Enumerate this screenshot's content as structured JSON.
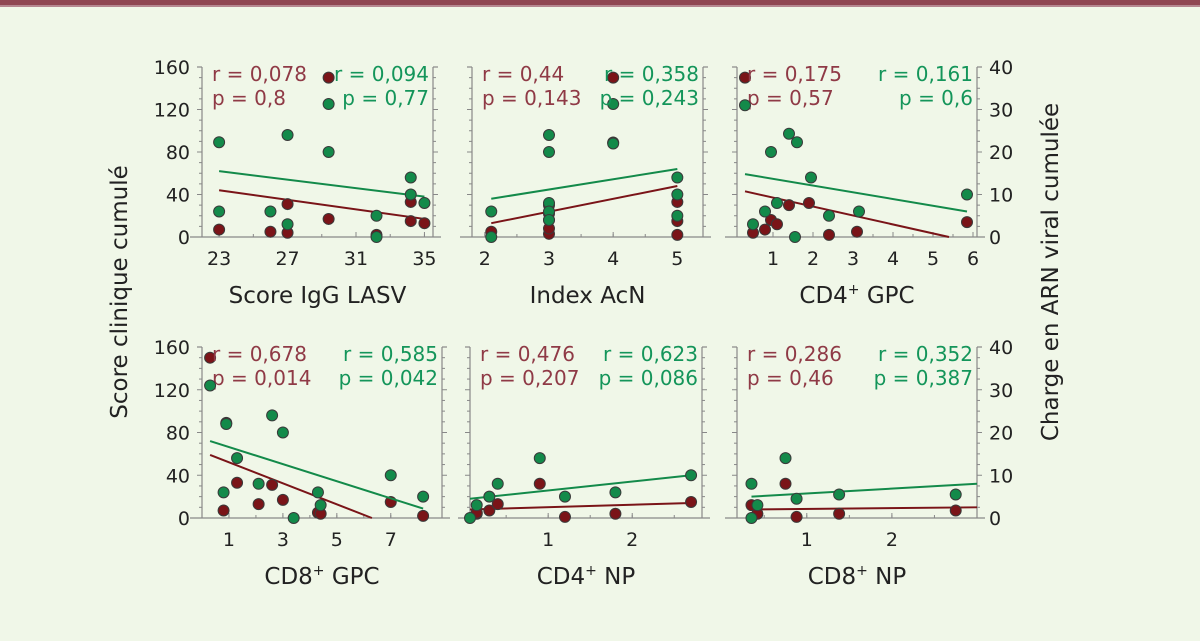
{
  "colors": {
    "background": "#f0f7e8",
    "bar": "#8f4652",
    "red": "#7a1418",
    "green": "#138a4a",
    "red_text": "#8f3a46",
    "green_text": "#14955a",
    "axis": "#888888"
  },
  "chart_data": [
    {
      "type": "scatter",
      "xlabel": "Score IgG LASV",
      "xlim": [
        22,
        35.5
      ],
      "xticks": [
        23,
        27,
        31,
        35
      ],
      "ylabel_left": "Score clinique cumulé",
      "ylim_left": [
        0,
        160
      ],
      "yticks_left": [
        0,
        40,
        80,
        120,
        160
      ],
      "ylabel_right": "Charge en ARN viral cumulée",
      "ylim_right": [
        0,
        40
      ],
      "yticks_right": [
        0,
        10,
        20,
        30,
        40
      ],
      "series": [
        {
          "name": "Score clinique cumulé",
          "color": "red",
          "axis": "left",
          "r": "r = 0,078",
          "p": "p = 0,8",
          "points": [
            [
              23,
              7
            ],
            [
              26,
              5
            ],
            [
              27,
              4
            ],
            [
              27,
              31
            ],
            [
              29.4,
              150
            ],
            [
              29.4,
              17
            ],
            [
              32.2,
              2
            ],
            [
              34.2,
              33
            ],
            [
              34.2,
              15
            ],
            [
              35,
              13
            ]
          ],
          "fit": [
            [
              23,
              44
            ],
            [
              35,
              17
            ]
          ]
        },
        {
          "name": "Charge en ARN viral cumulée",
          "color": "green",
          "axis": "right",
          "r": "r = 0,094",
          "p": "p = 0,77",
          "points": [
            [
              23,
              22.3
            ],
            [
              23,
              6
            ],
            [
              26,
              6
            ],
            [
              27,
              24
            ],
            [
              27,
              3
            ],
            [
              29.4,
              31.3
            ],
            [
              29.4,
              20
            ],
            [
              32.2,
              5
            ],
            [
              32.2,
              0
            ],
            [
              34.2,
              14
            ],
            [
              34.2,
              10
            ],
            [
              35,
              8
            ]
          ],
          "fit": [
            [
              23,
              15.5
            ],
            [
              35,
              9.5
            ]
          ]
        }
      ]
    },
    {
      "type": "scatter",
      "xlabel": "Index AcN",
      "xlim": [
        1.8,
        5.4
      ],
      "xticks": [
        2,
        3,
        4,
        5
      ],
      "ylim_left": [
        0,
        160
      ],
      "ylim_right": [
        0,
        40
      ],
      "series": [
        {
          "name": "Score clinique cumulé",
          "color": "red",
          "axis": "left",
          "r": "r = 0,44",
          "p": "p = 0,143",
          "points": [
            [
              2.1,
              5
            ],
            [
              3,
              3
            ],
            [
              3,
              8
            ],
            [
              3,
              16
            ],
            [
              3,
              22
            ],
            [
              3,
              30
            ],
            [
              4,
              150
            ],
            [
              4,
              89
            ],
            [
              5,
              33
            ],
            [
              5,
              15
            ],
            [
              5,
              2
            ]
          ],
          "fit": [
            [
              2.1,
              13
            ],
            [
              5,
              48
            ]
          ]
        },
        {
          "name": "Charge en ARN viral cumulée",
          "color": "green",
          "axis": "right",
          "r": "r = 0,358",
          "p": "p = 0,243",
          "points": [
            [
              2.1,
              6
            ],
            [
              2.1,
              0
            ],
            [
              3,
              24
            ],
            [
              3,
              20
            ],
            [
              3,
              8
            ],
            [
              3,
              6
            ],
            [
              3,
              4
            ],
            [
              4,
              31.3
            ],
            [
              4,
              22
            ],
            [
              5,
              14
            ],
            [
              5,
              10
            ],
            [
              5,
              5
            ]
          ],
          "fit": [
            [
              2.1,
              9
            ],
            [
              5,
              16
            ]
          ]
        }
      ]
    },
    {
      "type": "scatter",
      "xlabel": "CD4+ GPC",
      "xlim": [
        0.1,
        6.1
      ],
      "xticks": [
        1,
        2,
        3,
        4,
        5,
        6
      ],
      "ylim_left": [
        0,
        160
      ],
      "ylim_right": [
        0,
        40
      ],
      "series": [
        {
          "name": "Score clinique cumulé",
          "color": "red",
          "axis": "left",
          "r": "r = 0,175",
          "p": "p = 0,57",
          "points": [
            [
              0.3,
              150
            ],
            [
              0.5,
              4
            ],
            [
              0.8,
              7
            ],
            [
              0.95,
              16
            ],
            [
              1.1,
              12
            ],
            [
              1.4,
              30
            ],
            [
              1.9,
              32
            ],
            [
              2.4,
              2
            ],
            [
              3.1,
              5
            ],
            [
              5.85,
              14
            ]
          ],
          "fit": [
            [
              0.3,
              43
            ],
            [
              5.4,
              0
            ]
          ]
        },
        {
          "name": "Charge en ARN viral cumulée",
          "color": "green",
          "axis": "right",
          "r": "r = 0,161",
          "p": "p = 0,6",
          "points": [
            [
              0.3,
              31
            ],
            [
              0.5,
              3
            ],
            [
              0.8,
              6
            ],
            [
              0.95,
              20
            ],
            [
              1.1,
              8
            ],
            [
              1.4,
              24.3
            ],
            [
              1.6,
              22.3
            ],
            [
              1.55,
              0
            ],
            [
              1.95,
              14
            ],
            [
              2.4,
              5
            ],
            [
              3.15,
              6
            ],
            [
              5.85,
              10
            ]
          ],
          "fit": [
            [
              0.3,
              14.8
            ],
            [
              5.85,
              6
            ]
          ]
        }
      ]
    },
    {
      "type": "scatter",
      "xlabel": "CD8+ GPC",
      "xlim": [
        0,
        8.9
      ],
      "xticks": [
        1,
        3,
        5,
        7
      ],
      "ylim_left": [
        0,
        160
      ],
      "ylim_right": [
        0,
        40
      ],
      "series": [
        {
          "name": "Score clinique cumulé",
          "color": "red",
          "axis": "left",
          "r": "r = 0,678",
          "p": "p = 0,014",
          "points": [
            [
              0.3,
              150
            ],
            [
              0.8,
              7
            ],
            [
              0.9,
              89
            ],
            [
              1.3,
              33
            ],
            [
              2.1,
              13
            ],
            [
              2.6,
              31
            ],
            [
              3,
              17
            ],
            [
              4.3,
              5
            ],
            [
              4.4,
              4
            ],
            [
              7,
              15
            ],
            [
              8.2,
              2
            ]
          ],
          "fit": [
            [
              0.3,
              59
            ],
            [
              6.3,
              0
            ]
          ]
        },
        {
          "name": "Charge en ARN viral cumulée",
          "color": "green",
          "axis": "right",
          "r": "r = 0,585",
          "p": "p = 0,042",
          "points": [
            [
              0.3,
              31
            ],
            [
              0.8,
              6
            ],
            [
              0.9,
              22
            ],
            [
              1.3,
              14
            ],
            [
              2.1,
              8
            ],
            [
              2.6,
              24
            ],
            [
              3,
              20
            ],
            [
              3.4,
              0
            ],
            [
              4.3,
              6
            ],
            [
              4.4,
              3
            ],
            [
              7,
              10
            ],
            [
              8.2,
              5
            ]
          ],
          "fit": [
            [
              0.3,
              18
            ],
            [
              8.2,
              2.2
            ]
          ]
        }
      ]
    },
    {
      "type": "scatter",
      "xlabel": "CD4+ NP",
      "xlim": [
        0.07,
        2.83
      ],
      "xticks": [
        1,
        2
      ],
      "ylim_left": [
        0,
        160
      ],
      "ylim_right": [
        0,
        40
      ],
      "series": [
        {
          "name": "Score clinique cumulé",
          "color": "red",
          "axis": "left",
          "r": "r = 0,476",
          "p": "p = 0,207",
          "points": [
            [
              0.15,
              4
            ],
            [
              0.15,
              5
            ],
            [
              0.3,
              7
            ],
            [
              0.4,
              13
            ],
            [
              0.9,
              32
            ],
            [
              1.2,
              1
            ],
            [
              1.8,
              4
            ],
            [
              2.7,
              15
            ]
          ],
          "fit": [
            [
              0.07,
              8
            ],
            [
              2.7,
              14
            ]
          ]
        },
        {
          "name": "Charge en ARN viral cumulée",
          "color": "green",
          "axis": "right",
          "r": "r = 0,623",
          "p": "p = 0,086",
          "points": [
            [
              0.07,
              0
            ],
            [
              0.15,
              3
            ],
            [
              0.3,
              5
            ],
            [
              0.4,
              8
            ],
            [
              0.9,
              14
            ],
            [
              1.2,
              5
            ],
            [
              1.8,
              6
            ],
            [
              2.7,
              10
            ]
          ],
          "fit": [
            [
              0.07,
              4.5
            ],
            [
              2.7,
              10
            ]
          ]
        }
      ]
    },
    {
      "type": "scatter",
      "xlabel": "CD8+ NP",
      "xlim": [
        0.18,
        3.0
      ],
      "xticks": [
        1,
        2
      ],
      "ylim_left": [
        0,
        160
      ],
      "ylim_right": [
        0,
        40
      ],
      "series": [
        {
          "name": "Score clinique cumulé",
          "color": "red",
          "axis": "left",
          "r": "r = 0,286",
          "p": "p = 0,46",
          "points": [
            [
              0.35,
              12
            ],
            [
              0.42,
              4
            ],
            [
              0.75,
              32
            ],
            [
              0.88,
              1
            ],
            [
              1.38,
              4
            ],
            [
              2.75,
              7
            ]
          ],
          "fit": [
            [
              0.35,
              8
            ],
            [
              3.0,
              10
            ]
          ]
        },
        {
          "name": "Charge en ARN viral cumulée",
          "color": "green",
          "axis": "right",
          "r": "r = 0,352",
          "p": "p = 0,387",
          "points": [
            [
              0.35,
              8
            ],
            [
              0.35,
              0
            ],
            [
              0.42,
              3
            ],
            [
              0.75,
              14
            ],
            [
              0.88,
              4.5
            ],
            [
              1.38,
              5.5
            ],
            [
              2.75,
              5.5
            ]
          ],
          "fit": [
            [
              0.35,
              5
            ],
            [
              3.0,
              8
            ]
          ]
        }
      ]
    }
  ],
  "labels": {
    "left_axis": "Score clinique cumulé",
    "right_axis": "Charge en ARN viral cumulée"
  }
}
